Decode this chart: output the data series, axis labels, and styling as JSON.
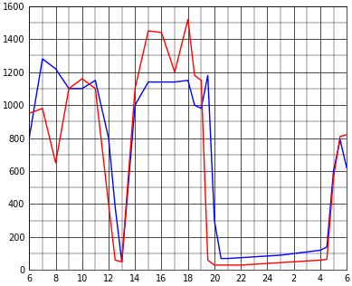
{
  "x": [
    6,
    7,
    8,
    9,
    10,
    11,
    12,
    12.5,
    13,
    14,
    15,
    16,
    17,
    18,
    18.5,
    19,
    19.5,
    20,
    20.5,
    21,
    22,
    23,
    24,
    25,
    26,
    27,
    28,
    28.5,
    29,
    29.5,
    30
  ],
  "blue": [
    800,
    1280,
    1220,
    1100,
    1100,
    1150,
    800,
    380,
    50,
    1000,
    1140,
    1140,
    1140,
    1150,
    1000,
    980,
    1180,
    300,
    70,
    70,
    75,
    80,
    85,
    90,
    100,
    110,
    120,
    140,
    600,
    790,
    620
  ],
  "red": [
    950,
    980,
    650,
    1100,
    1160,
    1100,
    400,
    60,
    50,
    1100,
    1450,
    1440,
    1200,
    1520,
    1180,
    1150,
    60,
    30,
    30,
    30,
    30,
    35,
    40,
    45,
    50,
    55,
    60,
    65,
    560,
    810,
    820
  ],
  "xlim": [
    6,
    30
  ],
  "ylim": [
    0,
    1600
  ],
  "xtick_pos": [
    6,
    8,
    10,
    12,
    14,
    16,
    18,
    20,
    22,
    24,
    26,
    28,
    30
  ],
  "xtick_labels": [
    "6",
    "8",
    "10",
    "12",
    "14",
    "16",
    "18",
    "20",
    "22",
    "24",
    "2",
    "4",
    "6"
  ],
  "yticks": [
    0,
    200,
    400,
    600,
    800,
    1000,
    1200,
    1400,
    1600
  ],
  "blue_color": "#0000ff",
  "red_color": "#ff0000",
  "bg_color": "#ffffff",
  "grid_color": "#000000",
  "linewidth": 1.0
}
